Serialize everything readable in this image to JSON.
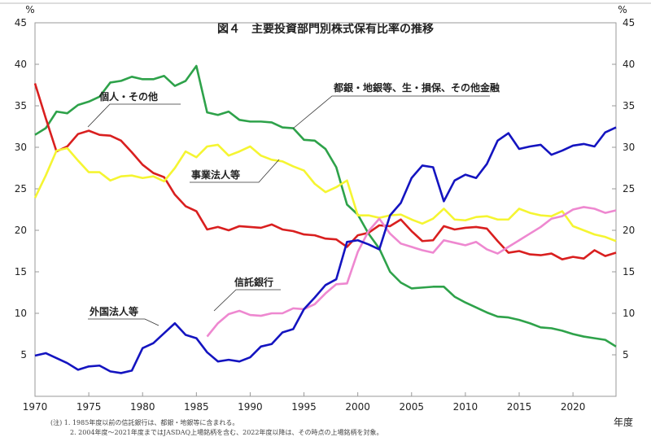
{
  "chart_data": {
    "type": "line",
    "title": "図４　主要投資部門別株式保有比率の推移",
    "xlabel": "年度",
    "ylabel": "%",
    "ylabel_right": "%",
    "xlim": [
      1970,
      2024
    ],
    "ylim": [
      0,
      45
    ],
    "x_ticks": [
      "1970",
      "1975",
      "1980",
      "1985",
      "1990",
      "1995",
      "2000",
      "2005",
      "2010",
      "2015",
      "2020"
    ],
    "y_ticks": [
      "5",
      "10",
      "15",
      "20",
      "25",
      "30",
      "35",
      "40",
      "45"
    ],
    "grid": false,
    "notes": [
      "(注) 1. 1985年度以前の信託銀行は、都銀・地銀等に含まれる。",
      "2. 2004年度～2021年度まではJASDAQ上場銘柄を含む、2022年度以降は、その時点の上場銘柄を対象。"
    ],
    "series": [
      {
        "name": "都銀・地銀等、生・損保、その他金融",
        "color": "#2ea24a",
        "start": 1970,
        "values": [
          31.5,
          32.3,
          34.3,
          34.1,
          35.1,
          35.5,
          36.1,
          37.8,
          38.0,
          38.5,
          38.2,
          38.2,
          38.6,
          37.4,
          38.0,
          39.8,
          34.2,
          33.9,
          34.3,
          33.3,
          33.1,
          33.1,
          33.0,
          32.4,
          32.3,
          30.9,
          30.8,
          29.8,
          27.6,
          23.1,
          21.9,
          19.6,
          17.8,
          15.0,
          13.7,
          13.0,
          13.1,
          13.2,
          13.2,
          12.0,
          11.3,
          10.7,
          10.1,
          9.6,
          9.5,
          9.2,
          8.8,
          8.3,
          8.2,
          7.9,
          7.5,
          7.2,
          7.0,
          6.8,
          6.0
        ]
      },
      {
        "name": "個人・その他",
        "color": "#d91f1f",
        "start": 1970,
        "values": [
          37.7,
          33.5,
          29.5,
          30.1,
          31.6,
          32.0,
          31.5,
          31.4,
          30.8,
          29.4,
          27.9,
          26.9,
          26.4,
          24.3,
          22.9,
          22.3,
          20.1,
          20.4,
          20.0,
          20.5,
          20.4,
          20.3,
          20.7,
          20.1,
          19.9,
          19.5,
          19.4,
          19.0,
          18.9,
          18.0,
          19.4,
          19.7,
          20.6,
          20.5,
          21.3,
          19.9,
          18.7,
          18.8,
          20.5,
          20.1,
          20.3,
          20.4,
          20.2,
          18.7,
          17.3,
          17.5,
          17.1,
          17.0,
          17.2,
          16.5,
          16.8,
          16.6,
          17.6,
          16.9,
          17.3
        ]
      },
      {
        "name": "事業法人等",
        "color": "#f5f532",
        "start": 1970,
        "values": [
          23.9,
          26.6,
          29.6,
          29.9,
          28.4,
          27.0,
          27.0,
          26.0,
          26.5,
          26.6,
          26.3,
          26.5,
          25.9,
          27.5,
          29.5,
          28.8,
          30.1,
          30.3,
          29.0,
          29.5,
          30.1,
          29.0,
          28.5,
          28.3,
          27.7,
          27.2,
          25.6,
          24.6,
          25.2,
          26.0,
          21.8,
          21.8,
          21.5,
          21.8,
          21.9,
          21.3,
          20.8,
          21.4,
          22.6,
          21.3,
          21.2,
          21.6,
          21.7,
          21.3,
          21.3,
          22.6,
          22.1,
          21.8,
          21.7,
          22.3,
          20.5,
          20.0,
          19.5,
          19.2,
          18.7
        ]
      },
      {
        "name": "信託銀行",
        "color": "#ee88d0",
        "start": 1986,
        "values": [
          7.2,
          8.8,
          9.9,
          10.3,
          9.8,
          9.7,
          10.0,
          10.0,
          10.6,
          10.5,
          11.1,
          12.4,
          13.5,
          13.6,
          17.4,
          19.9,
          21.4,
          19.6,
          18.4,
          18.0,
          17.6,
          17.3,
          18.8,
          18.5,
          18.2,
          18.6,
          17.7,
          17.2,
          18.0,
          18.8,
          19.6,
          20.4,
          21.4,
          21.7,
          22.5,
          22.8,
          22.6,
          22.1,
          22.4
        ]
      },
      {
        "name": "外国法人等",
        "color": "#1414c0",
        "start": 1970,
        "values": [
          4.9,
          5.2,
          4.6,
          4.0,
          3.2,
          3.6,
          3.7,
          3.0,
          2.8,
          3.1,
          5.8,
          6.4,
          7.6,
          8.8,
          7.4,
          7.0,
          5.3,
          4.2,
          4.4,
          4.2,
          4.7,
          6.0,
          6.3,
          7.7,
          8.1,
          10.5,
          11.9,
          13.4,
          14.1,
          18.6,
          18.8,
          18.3,
          17.7,
          21.8,
          23.3,
          26.3,
          27.8,
          27.6,
          23.5,
          26.0,
          26.7,
          26.3,
          28.0,
          30.8,
          31.7,
          29.8,
          30.1,
          30.3,
          29.1,
          29.6,
          30.2,
          30.4,
          30.1,
          31.8,
          32.4
        ]
      }
    ]
  }
}
